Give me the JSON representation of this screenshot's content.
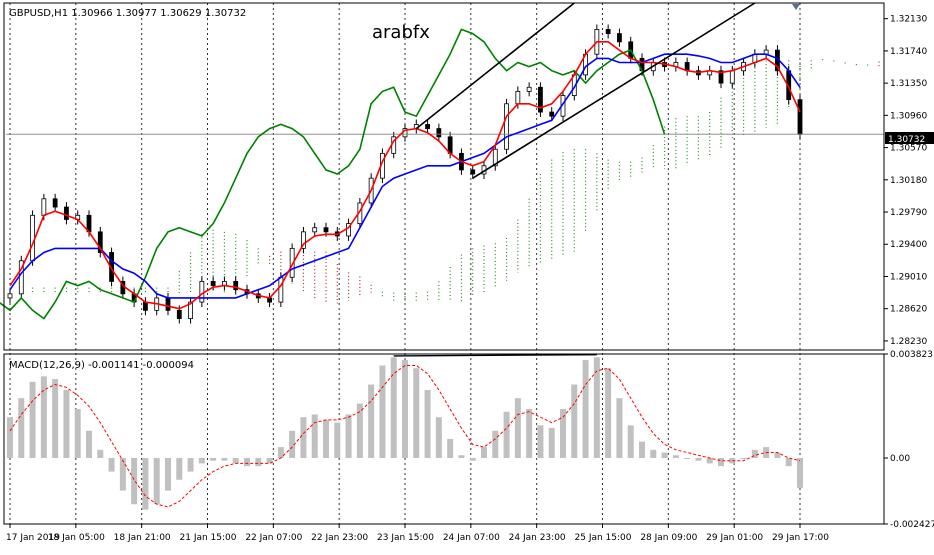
{
  "header": {
    "symbol_line": "GBPUSD,H1  1.30966 1.30977 1.30629 1.30732",
    "watermark": "arabfx"
  },
  "colors": {
    "background": "#ffffff",
    "frame": "#000000",
    "grid": "#000000",
    "bull_candle": "#ffffff",
    "bear_candle": "#000000",
    "tenkan": "#ff0000",
    "kijun": "#0000ff",
    "chikou": "#008000",
    "cloud_bull": "#228b22",
    "cloud_bear": "#b22222",
    "macd_hist": "#c0c0c0",
    "macd_signal": "#ff0000",
    "trendline": "#000000",
    "price_tag_bg": "#000000",
    "price_tag_text": "#ffffff"
  },
  "chart_data": [
    {
      "type": "candlestick",
      "title": "GBPUSD,H1",
      "ohlc_readout": {
        "open": 1.30966,
        "high": 1.30977,
        "low": 1.30629,
        "close": 1.30732
      },
      "current_price_label": "1.30732",
      "current_price": 1.30732,
      "ylim": [
        1.2812,
        1.3232
      ],
      "y_ticks": [
        "1.32130",
        "1.31740",
        "1.31350",
        "1.30960",
        "1.30570",
        "1.30180",
        "1.29790",
        "1.29400",
        "1.29010",
        "1.28620",
        "1.28230"
      ],
      "x_ticks": [
        "17 Jan 2019",
        "18 Jan 05:00",
        "18 Jan 21:00",
        "21 Jan 15:00",
        "22 Jan 07:00",
        "22 Jan 23:00",
        "23 Jan 15:00",
        "24 Jan 07:00",
        "24 Jan 23:00",
        "25 Jan 15:00",
        "28 Jan 09:00",
        "29 Jan 01:00",
        "29 Jan 17:00"
      ],
      "grid": "vertical dotted",
      "indicators": [
        "Ichimoku",
        "channel trendlines"
      ],
      "series": [
        {
          "kind": "close",
          "values": [
            1.288,
            1.292,
            1.2975,
            1.2995,
            1.2985,
            1.297,
            1.2975,
            1.2955,
            1.293,
            1.2895,
            1.288,
            1.287,
            1.286,
            1.2875,
            1.286,
            1.285,
            1.287,
            1.2895,
            1.289,
            1.2895,
            1.2885,
            1.288,
            1.2875,
            1.287,
            1.29,
            1.2935,
            1.2955,
            1.296,
            1.2955,
            1.295,
            1.2965,
            1.299,
            1.302,
            1.305,
            1.307,
            1.308,
            1.3085,
            1.308,
            1.307,
            1.305,
            1.303,
            1.3025,
            1.3035,
            1.3055,
            1.311,
            1.3125,
            1.313,
            1.31,
            1.3095,
            1.312,
            1.3145,
            1.317,
            1.32,
            1.3195,
            1.3185,
            1.3165,
            1.315,
            1.316,
            1.3155,
            1.316,
            1.315,
            1.3145,
            1.315,
            1.3135,
            1.315,
            1.316,
            1.317,
            1.3175,
            1.315,
            1.3115,
            1.3073
          ]
        },
        {
          "kind": "tenkan",
          "values": [
            1.289,
            1.291,
            1.294,
            1.2975,
            1.298,
            1.2975,
            1.297,
            1.2955,
            1.2935,
            1.291,
            1.289,
            1.288,
            1.287,
            1.2868,
            1.2865,
            1.2862,
            1.2868,
            1.288,
            1.2888,
            1.289,
            1.2888,
            1.2883,
            1.2878,
            1.2875,
            1.289,
            1.2915,
            1.294,
            1.295,
            1.2952,
            1.2952,
            1.296,
            1.298,
            1.3005,
            1.304,
            1.3065,
            1.3078,
            1.308,
            1.3075,
            1.3065,
            1.305,
            1.304,
            1.3035,
            1.304,
            1.306,
            1.3095,
            1.311,
            1.311,
            1.3105,
            1.311,
            1.3125,
            1.3145,
            1.317,
            1.3185,
            1.3185,
            1.3175,
            1.3165,
            1.316,
            1.316,
            1.3158,
            1.3155,
            1.315,
            1.3148,
            1.315,
            1.3148,
            1.315,
            1.3155,
            1.316,
            1.3165,
            1.3155,
            1.313,
            1.31
          ]
        },
        {
          "kind": "kijun",
          "values": [
            1.2885,
            1.2905,
            1.292,
            1.293,
            1.2935,
            1.2935,
            1.2935,
            1.2935,
            1.2935,
            1.292,
            1.291,
            1.2905,
            1.2895,
            1.288,
            1.2875,
            1.2875,
            1.2875,
            1.2875,
            1.2875,
            1.2875,
            1.2875,
            1.288,
            1.2885,
            1.289,
            1.29,
            1.291,
            1.2915,
            1.292,
            1.2925,
            1.293,
            1.2935,
            1.296,
            1.2985,
            1.301,
            1.302,
            1.3025,
            1.303,
            1.3035,
            1.3035,
            1.3035,
            1.304,
            1.3045,
            1.305,
            1.306,
            1.307,
            1.3075,
            1.308,
            1.3085,
            1.309,
            1.311,
            1.313,
            1.3155,
            1.3165,
            1.3165,
            1.316,
            1.316,
            1.316,
            1.3165,
            1.317,
            1.317,
            1.317,
            1.3168,
            1.3165,
            1.316,
            1.316,
            1.3165,
            1.317,
            1.317,
            1.3165,
            1.315,
            1.313
          ]
        }
      ]
    },
    {
      "type": "macd",
      "title": "MACD(12,26,9) -0.001141 -0.000094",
      "ylim": [
        -0.002427,
        0.003823
      ],
      "y_ticks": [
        "0.003823",
        "0.00",
        "-0.002427"
      ],
      "series": [
        {
          "name": "main",
          "values": [
            0.0015,
            0.0022,
            0.0028,
            0.003,
            0.0029,
            0.0025,
            0.0018,
            0.001,
            0.0003,
            -0.0005,
            -0.0012,
            -0.0017,
            -0.0019,
            -0.0017,
            -0.0012,
            -0.0008,
            -0.0005,
            -0.0002,
            -0.0001,
            -0.0001,
            -0.0002,
            -0.0003,
            -0.0003,
            -0.0002,
            0.0004,
            0.001,
            0.0015,
            0.0016,
            0.0014,
            0.0013,
            0.0016,
            0.002,
            0.0027,
            0.0034,
            0.0037,
            0.0036,
            0.0033,
            0.0025,
            0.0015,
            0.0007,
            0.0001,
            -0.0001,
            0.0004,
            0.001,
            0.0017,
            0.0022,
            0.0018,
            0.0012,
            0.0011,
            0.0018,
            0.0027,
            0.0036,
            0.0037,
            0.0033,
            0.0022,
            0.0012,
            0.0006,
            0.0003,
            0.0002,
            0.0001,
            0.0,
            -0.0001,
            -0.0002,
            -0.0003,
            -0.0002,
            0.0,
            0.0003,
            0.0004,
            0.0002,
            -0.0003,
            -0.0011
          ]
        },
        {
          "name": "signal",
          "values": [
            0.001,
            0.0016,
            0.0021,
            0.0025,
            0.0027,
            0.0026,
            0.0023,
            0.0019,
            0.0013,
            0.0006,
            -0.0001,
            -0.0008,
            -0.0014,
            -0.0017,
            -0.0018,
            -0.0016,
            -0.0012,
            -0.0008,
            -0.0005,
            -0.0003,
            -0.0002,
            -0.0002,
            -0.0002,
            -0.0002,
            0.0,
            0.0004,
            0.0009,
            0.0013,
            0.0014,
            0.0014,
            0.0015,
            0.0017,
            0.0021,
            0.0026,
            0.0031,
            0.0034,
            0.0034,
            0.0031,
            0.0025,
            0.0018,
            0.0011,
            0.0005,
            0.0004,
            0.0007,
            0.0011,
            0.0016,
            0.0017,
            0.0015,
            0.0013,
            0.0015,
            0.002,
            0.0027,
            0.0032,
            0.0033,
            0.0029,
            0.0022,
            0.0015,
            0.0009,
            0.0005,
            0.0003,
            0.0002,
            0.0001,
            0.0,
            -0.0001,
            -0.0001,
            -0.0001,
            0.0001,
            0.0002,
            0.0002,
            0.0,
            -0.0001
          ]
        }
      ]
    }
  ]
}
